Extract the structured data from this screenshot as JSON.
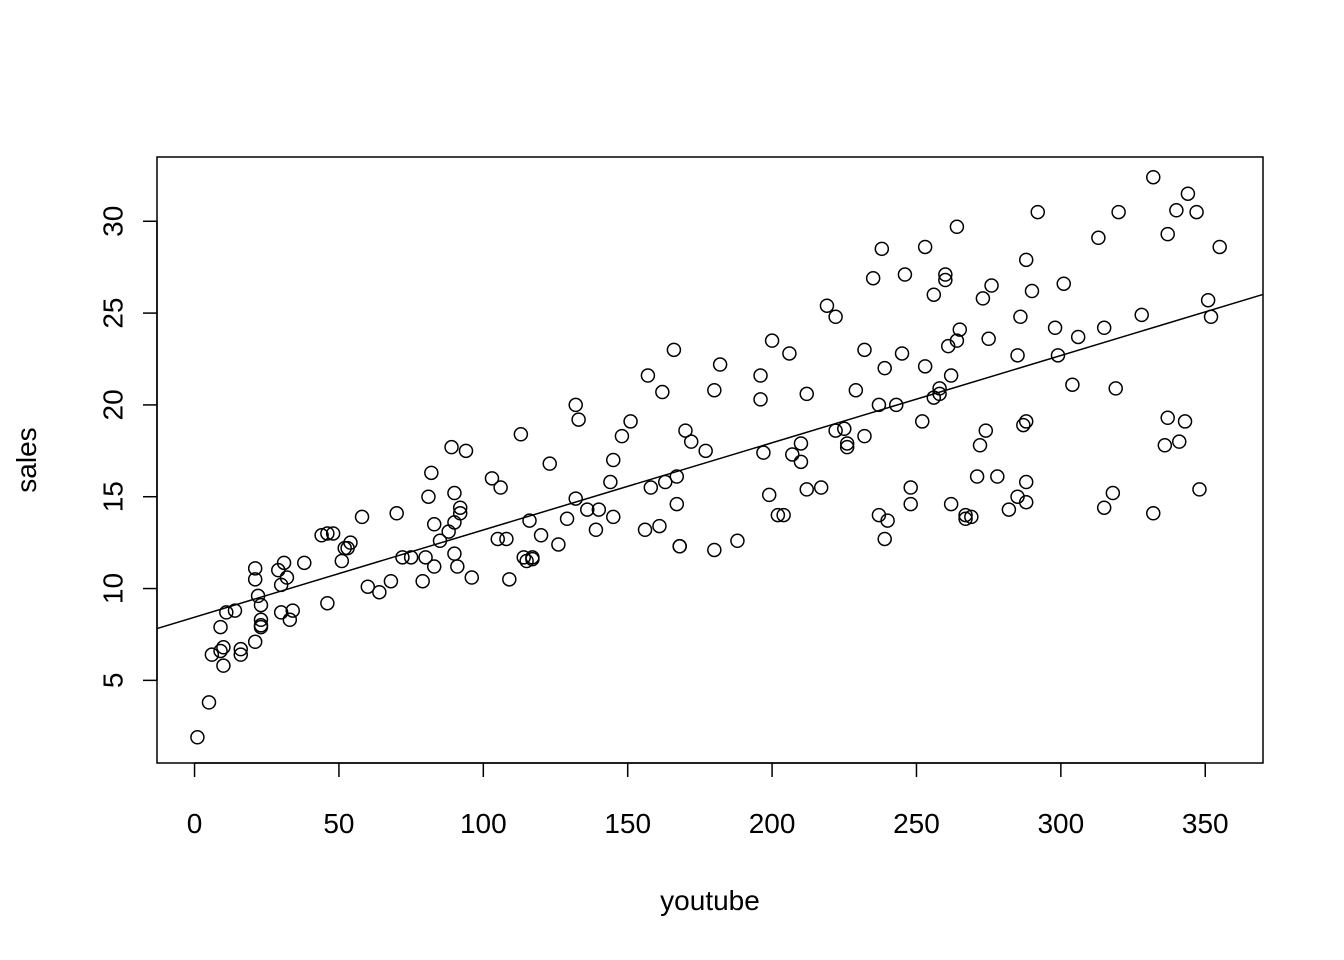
{
  "chart_data": {
    "type": "scatter",
    "title": "",
    "xlabel": "youtube",
    "ylabel": "sales",
    "xlim": [
      -13,
      370
    ],
    "ylim": [
      0.5,
      33.5
    ],
    "xticks": [
      0,
      50,
      100,
      150,
      200,
      250,
      300,
      350
    ],
    "yticks": [
      5,
      10,
      15,
      20,
      25,
      30
    ],
    "grid": false,
    "legend": "none",
    "point_style": "open-circle",
    "colors": {
      "points": "#000000",
      "line": "#000000",
      "frame": "#000000",
      "background": "#ffffff"
    },
    "regression_line": {
      "intercept": 8.44,
      "slope": 0.0475
    },
    "points": [
      [
        1,
        1.9
      ],
      [
        5,
        3.8
      ],
      [
        6,
        6.4
      ],
      [
        9,
        6.6
      ],
      [
        9,
        7.9
      ],
      [
        10,
        5.8
      ],
      [
        10,
        6.8
      ],
      [
        11,
        8.7
      ],
      [
        14,
        8.8
      ],
      [
        16,
        6.7
      ],
      [
        16,
        6.4
      ],
      [
        21,
        7.1
      ],
      [
        21,
        10.5
      ],
      [
        21,
        11.1
      ],
      [
        22,
        9.6
      ],
      [
        23,
        8.3
      ],
      [
        23,
        8.0
      ],
      [
        23,
        7.9
      ],
      [
        23,
        9.1
      ],
      [
        29,
        11.0
      ],
      [
        30,
        10.2
      ],
      [
        30,
        8.7
      ],
      [
        31,
        11.4
      ],
      [
        32,
        10.6
      ],
      [
        33,
        8.3
      ],
      [
        34,
        8.8
      ],
      [
        38,
        11.4
      ],
      [
        44,
        12.9
      ],
      [
        46,
        13.0
      ],
      [
        46,
        9.2
      ],
      [
        48,
        13.0
      ],
      [
        51,
        11.5
      ],
      [
        52,
        12.2
      ],
      [
        53,
        12.2
      ],
      [
        54,
        12.5
      ],
      [
        58,
        13.9
      ],
      [
        60,
        10.1
      ],
      [
        64,
        9.8
      ],
      [
        68,
        10.4
      ],
      [
        70,
        14.1
      ],
      [
        72,
        11.7
      ],
      [
        75,
        11.7
      ],
      [
        79,
        10.4
      ],
      [
        80,
        11.7
      ],
      [
        81,
        15.0
      ],
      [
        82,
        16.3
      ],
      [
        83,
        11.2
      ],
      [
        83,
        13.5
      ],
      [
        85,
        12.6
      ],
      [
        88,
        13.1
      ],
      [
        89,
        17.7
      ],
      [
        90,
        15.2
      ],
      [
        90,
        13.6
      ],
      [
        90,
        11.9
      ],
      [
        91,
        11.2
      ],
      [
        92,
        14.1
      ],
      [
        92,
        14.4
      ],
      [
        94,
        17.5
      ],
      [
        96,
        10.6
      ],
      [
        103,
        16.0
      ],
      [
        105,
        12.7
      ],
      [
        106,
        15.5
      ],
      [
        108,
        12.7
      ],
      [
        109,
        10.5
      ],
      [
        113,
        18.4
      ],
      [
        114,
        11.7
      ],
      [
        115,
        11.5
      ],
      [
        116,
        13.7
      ],
      [
        117,
        11.6
      ],
      [
        117,
        11.7
      ],
      [
        120,
        12.9
      ],
      [
        123,
        16.8
      ],
      [
        126,
        12.4
      ],
      [
        129,
        13.8
      ],
      [
        132,
        14.9
      ],
      [
        132,
        20.0
      ],
      [
        133,
        19.2
      ],
      [
        136,
        14.3
      ],
      [
        139,
        13.2
      ],
      [
        140,
        14.3
      ],
      [
        144,
        15.8
      ],
      [
        145,
        17.0
      ],
      [
        145,
        13.9
      ],
      [
        148,
        18.3
      ],
      [
        151,
        19.1
      ],
      [
        156,
        13.2
      ],
      [
        157,
        21.6
      ],
      [
        158,
        15.5
      ],
      [
        161,
        13.4
      ],
      [
        162,
        20.7
      ],
      [
        163,
        15.8
      ],
      [
        166,
        23.0
      ],
      [
        167,
        14.6
      ],
      [
        167,
        16.1
      ],
      [
        168,
        12.3
      ],
      [
        168,
        12.3
      ],
      [
        170,
        18.6
      ],
      [
        172,
        18.0
      ],
      [
        177,
        17.5
      ],
      [
        180,
        20.8
      ],
      [
        180,
        12.1
      ],
      [
        182,
        22.2
      ],
      [
        188,
        12.6
      ],
      [
        196,
        20.3
      ],
      [
        196,
        21.6
      ],
      [
        197,
        17.4
      ],
      [
        199,
        15.1
      ],
      [
        200,
        23.5
      ],
      [
        202,
        14.0
      ],
      [
        204,
        14.0
      ],
      [
        206,
        22.8
      ],
      [
        207,
        17.3
      ],
      [
        210,
        17.9
      ],
      [
        210,
        16.9
      ],
      [
        212,
        20.6
      ],
      [
        212,
        15.4
      ],
      [
        217,
        15.5
      ],
      [
        219,
        25.4
      ],
      [
        222,
        24.8
      ],
      [
        222,
        18.6
      ],
      [
        225,
        18.7
      ],
      [
        226,
        17.7
      ],
      [
        226,
        17.9
      ],
      [
        229,
        20.8
      ],
      [
        232,
        18.3
      ],
      [
        232,
        23.0
      ],
      [
        235,
        26.9
      ],
      [
        237,
        20.0
      ],
      [
        237,
        14.0
      ],
      [
        238,
        28.5
      ],
      [
        239,
        22.0
      ],
      [
        239,
        12.7
      ],
      [
        240,
        13.7
      ],
      [
        243,
        20.0
      ],
      [
        245,
        22.8
      ],
      [
        246,
        27.1
      ],
      [
        248,
        15.5
      ],
      [
        248,
        14.6
      ],
      [
        252,
        19.1
      ],
      [
        253,
        28.6
      ],
      [
        253,
        22.1
      ],
      [
        256,
        20.4
      ],
      [
        256,
        26.0
      ],
      [
        258,
        20.9
      ],
      [
        258,
        20.6
      ],
      [
        260,
        27.1
      ],
      [
        260,
        26.8
      ],
      [
        261,
        23.2
      ],
      [
        262,
        21.6
      ],
      [
        262,
        14.6
      ],
      [
        264,
        23.5
      ],
      [
        264,
        29.7
      ],
      [
        265,
        24.1
      ],
      [
        267,
        14.0
      ],
      [
        267,
        13.8
      ],
      [
        269,
        13.9
      ],
      [
        271,
        16.1
      ],
      [
        272,
        17.8
      ],
      [
        273,
        25.8
      ],
      [
        274,
        18.6
      ],
      [
        275,
        23.6
      ],
      [
        276,
        26.5
      ],
      [
        278,
        16.1
      ],
      [
        282,
        14.3
      ],
      [
        285,
        15.0
      ],
      [
        285,
        22.7
      ],
      [
        286,
        24.8
      ],
      [
        287,
        18.9
      ],
      [
        288,
        27.9
      ],
      [
        288,
        19.1
      ],
      [
        288,
        15.8
      ],
      [
        288,
        14.7
      ],
      [
        290,
        26.2
      ],
      [
        292,
        30.5
      ],
      [
        298,
        24.2
      ],
      [
        299,
        22.7
      ],
      [
        301,
        26.6
      ],
      [
        304,
        21.1
      ],
      [
        306,
        23.7
      ],
      [
        313,
        29.1
      ],
      [
        315,
        24.2
      ],
      [
        315,
        14.4
      ],
      [
        318,
        15.2
      ],
      [
        319,
        20.9
      ],
      [
        320,
        30.5
      ],
      [
        328,
        24.9
      ],
      [
        332,
        32.4
      ],
      [
        332,
        14.1
      ],
      [
        336,
        17.8
      ],
      [
        337,
        19.3
      ],
      [
        337,
        29.3
      ],
      [
        340,
        30.6
      ],
      [
        341,
        18.0
      ],
      [
        343,
        19.1
      ],
      [
        344,
        31.5
      ],
      [
        347,
        30.5
      ],
      [
        348,
        15.4
      ],
      [
        351,
        25.7
      ],
      [
        352,
        24.8
      ],
      [
        355,
        28.6
      ]
    ]
  }
}
